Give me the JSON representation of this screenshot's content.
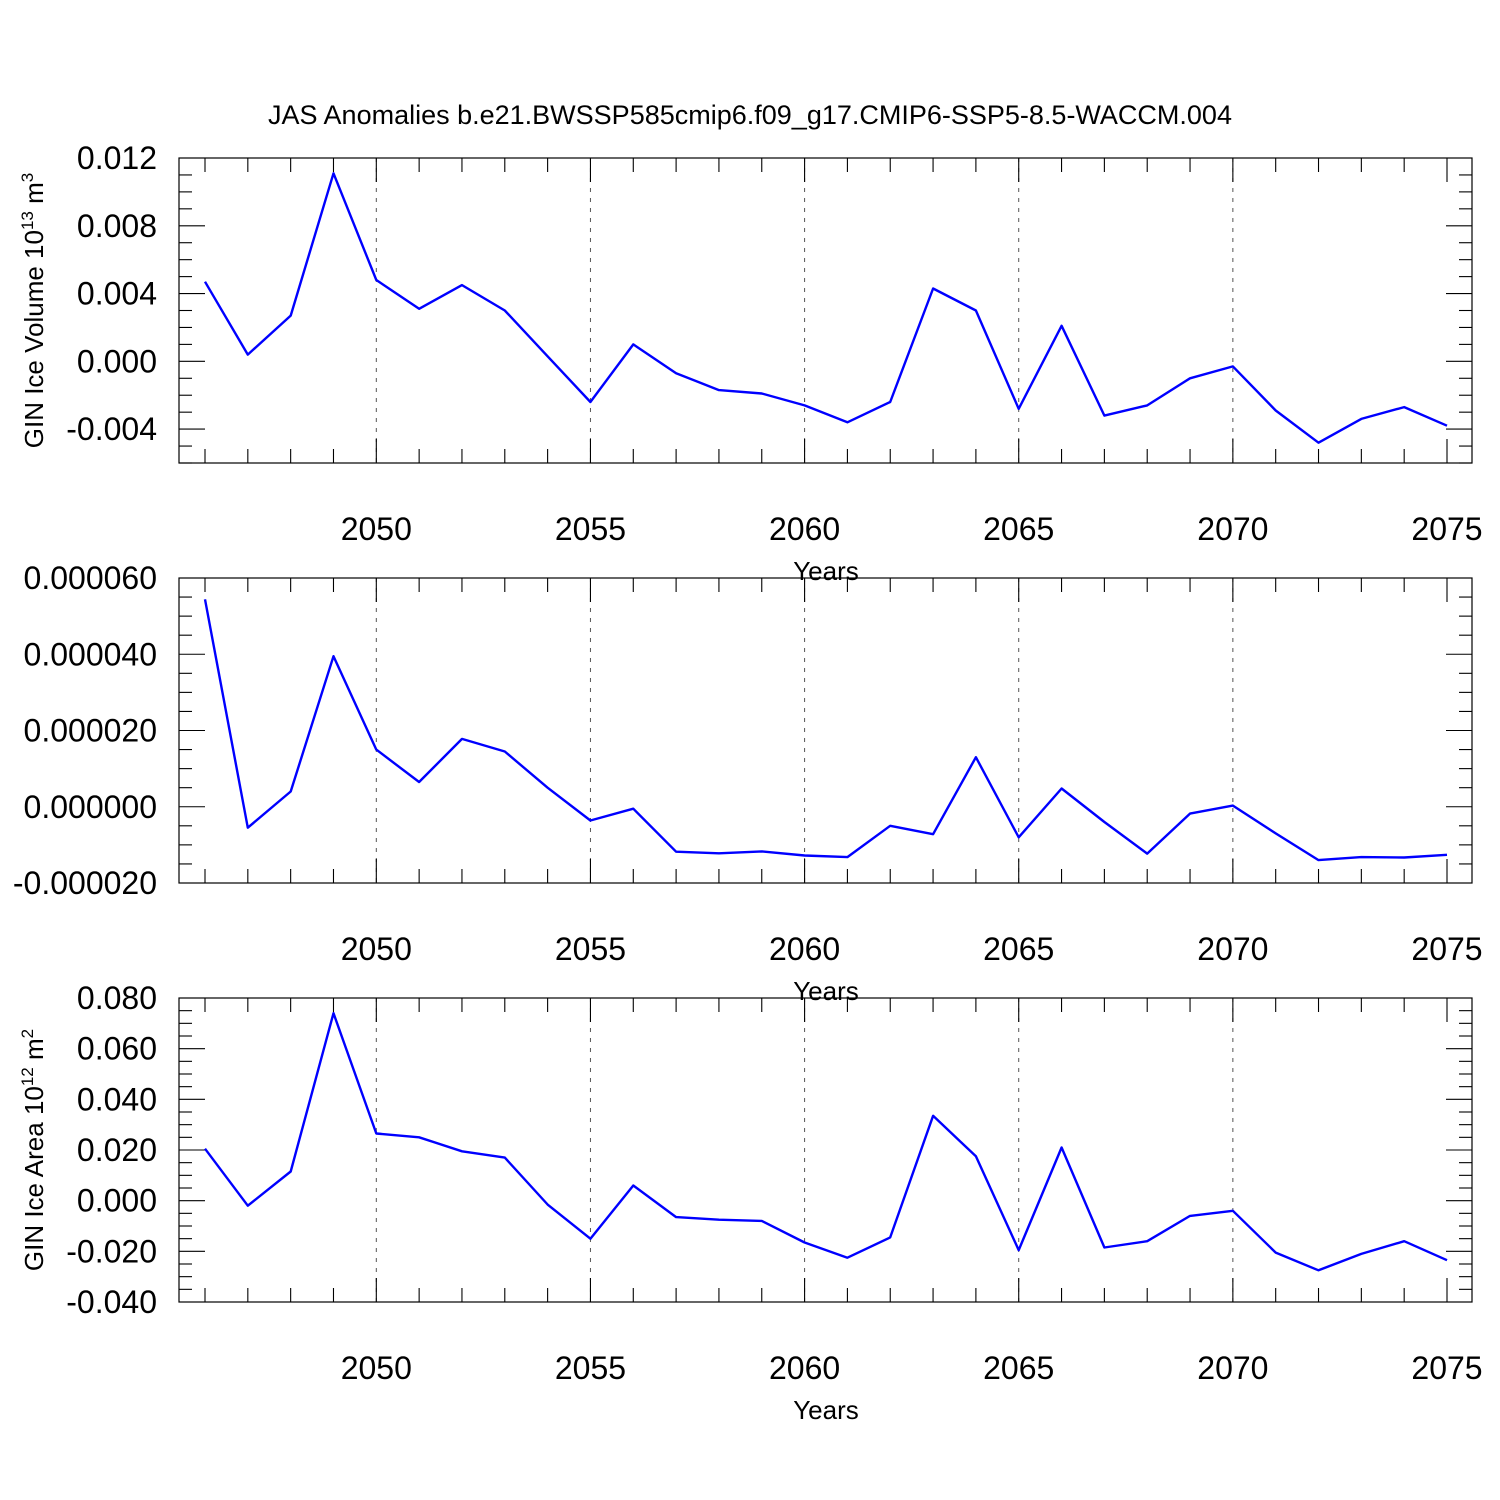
{
  "figure": {
    "title": "JAS Anomalies b.e21.BWSSP585cmip6.f09_g17.CMIP6-SSP5-8.5-WACCM.004"
  },
  "chart_data": [
    {
      "type": "line",
      "ylabel_main": "GIN Ice Volume 10",
      "ylabel_exp": "13",
      "ylabel_unit": "m",
      "ylabel_unit_exp": "3",
      "xlabel": "Years",
      "xlim": [
        2046,
        2075
      ],
      "ylim": [
        -0.006,
        0.012
      ],
      "yticks": [
        0.012,
        0.008,
        0.004,
        0.0,
        -0.004
      ],
      "ytick_labels": [
        "0.012",
        "0.008",
        "0.004",
        "0.000",
        "-0.004"
      ],
      "yminor_step": 0.001,
      "xticks": [
        2050,
        2055,
        2060,
        2065,
        2070,
        2075
      ],
      "xtick_labels": [
        "2050",
        "2055",
        "2060",
        "2065",
        "2070",
        "2075"
      ],
      "grid_x": [
        2050,
        2055,
        2060,
        2065,
        2070
      ],
      "series": [
        {
          "color": "#0000ff",
          "x": [
            2046,
            2047,
            2048,
            2049,
            2050,
            2051,
            2052,
            2053,
            2054,
            2055,
            2056,
            2057,
            2058,
            2059,
            2060,
            2061,
            2062,
            2063,
            2064,
            2065,
            2066,
            2067,
            2068,
            2069,
            2070,
            2071,
            2072,
            2073,
            2074,
            2075
          ],
          "y": [
            0.0047,
            0.0004,
            0.0027,
            0.0111,
            0.0048,
            0.0031,
            0.0045,
            0.003,
            0.0003,
            -0.0024,
            0.001,
            -0.0007,
            -0.0017,
            -0.0019,
            -0.0026,
            -0.0036,
            -0.0024,
            0.0043,
            0.003,
            -0.0028,
            0.0021,
            -0.0032,
            -0.0026,
            -0.001,
            -0.0003,
            -0.0029,
            -0.0048,
            -0.0034,
            -0.0027,
            -0.0038
          ]
        }
      ]
    },
    {
      "type": "line",
      "ylabel_main": "",
      "ylabel_exp": "",
      "ylabel_unit": "",
      "ylabel_unit_exp": "",
      "xlabel": "Years",
      "xlim": [
        2046,
        2075
      ],
      "ylim": [
        -2e-05,
        6e-05
      ],
      "yticks": [
        6e-05,
        4e-05,
        2e-05,
        0.0,
        -2e-05
      ],
      "ytick_labels": [
        "0.000060",
        "0.000040",
        "0.000020",
        "0.000000",
        "-0.000020"
      ],
      "yminor_step": 5e-06,
      "xticks": [
        2050,
        2055,
        2060,
        2065,
        2070,
        2075
      ],
      "xtick_labels": [
        "2050",
        "2055",
        "2060",
        "2065",
        "2070",
        "2075"
      ],
      "grid_x": [
        2050,
        2055,
        2060,
        2065,
        2070
      ],
      "series": [
        {
          "color": "#0000ff",
          "x": [
            2046,
            2047,
            2048,
            2049,
            2050,
            2051,
            2052,
            2053,
            2054,
            2055,
            2056,
            2057,
            2058,
            2059,
            2060,
            2061,
            2062,
            2063,
            2064,
            2065,
            2066,
            2067,
            2068,
            2069,
            2070,
            2071,
            2072,
            2073,
            2074,
            2075
          ],
          "y": [
            5.44e-05,
            -5.5e-06,
            4e-06,
            3.95e-05,
            1.5e-05,
            6.5e-06,
            1.78e-05,
            1.45e-05,
            5e-06,
            -3.6e-06,
            -5e-07,
            -1.18e-05,
            -1.22e-05,
            -1.17e-05,
            -1.28e-05,
            -1.32e-05,
            -5e-06,
            -7.2e-06,
            1.3e-05,
            -8e-06,
            4.8e-06,
            -4e-06,
            -1.23e-05,
            -1.8e-06,
            3e-07,
            -7e-06,
            -1.4e-05,
            -1.32e-05,
            -1.33e-05,
            -1.26e-05
          ]
        }
      ]
    },
    {
      "type": "line",
      "ylabel_main": "GIN Ice Area 10",
      "ylabel_exp": "12",
      "ylabel_unit": "m",
      "ylabel_unit_exp": "2",
      "xlabel": "Years",
      "xlim": [
        2046,
        2075
      ],
      "ylim": [
        -0.04,
        0.08
      ],
      "yticks": [
        0.08,
        0.06,
        0.04,
        0.02,
        0.0,
        -0.02,
        -0.04
      ],
      "ytick_labels": [
        "0.080",
        "0.060",
        "0.040",
        "0.020",
        "0.000",
        "-0.020",
        "-0.040"
      ],
      "yminor_step": 0.005,
      "xticks": [
        2050,
        2055,
        2060,
        2065,
        2070,
        2075
      ],
      "xtick_labels": [
        "2050",
        "2055",
        "2060",
        "2065",
        "2070",
        "2075"
      ],
      "grid_x": [
        2050,
        2055,
        2060,
        2065,
        2070
      ],
      "series": [
        {
          "color": "#0000ff",
          "x": [
            2046,
            2047,
            2048,
            2049,
            2050,
            2051,
            2052,
            2053,
            2054,
            2055,
            2056,
            2057,
            2058,
            2059,
            2060,
            2061,
            2062,
            2063,
            2064,
            2065,
            2066,
            2067,
            2068,
            2069,
            2070,
            2071,
            2072,
            2073,
            2074,
            2075
          ],
          "y": [
            0.0205,
            -0.002,
            0.0115,
            0.074,
            0.0265,
            0.025,
            0.0195,
            0.017,
            -0.0015,
            -0.015,
            0.006,
            -0.0065,
            -0.0075,
            -0.008,
            -0.0165,
            -0.0225,
            -0.0145,
            0.0335,
            0.0175,
            -0.0195,
            0.021,
            -0.0185,
            -0.016,
            -0.006,
            -0.004,
            -0.0205,
            -0.0275,
            -0.021,
            -0.016,
            -0.0235
          ]
        }
      ]
    }
  ]
}
